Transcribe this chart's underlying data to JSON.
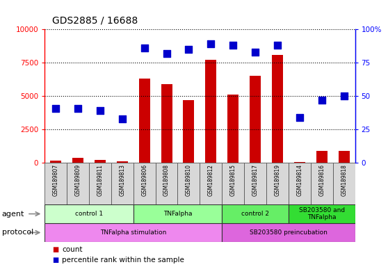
{
  "title": "GDS2885 / 16688",
  "samples": [
    "GSM189807",
    "GSM189809",
    "GSM189811",
    "GSM189813",
    "GSM189806",
    "GSM189808",
    "GSM189810",
    "GSM189812",
    "GSM189815",
    "GSM189817",
    "GSM189819",
    "GSM189814",
    "GSM189816",
    "GSM189818"
  ],
  "count_values": [
    150,
    400,
    200,
    100,
    6300,
    5900,
    4700,
    7700,
    5100,
    6500,
    8100,
    50,
    900,
    900
  ],
  "percentile_values": [
    41,
    41,
    39,
    33,
    86,
    82,
    85,
    89,
    88,
    83,
    88,
    34,
    47,
    50
  ],
  "ylim_left": [
    0,
    10000
  ],
  "ylim_right": [
    0,
    100
  ],
  "yticks_left": [
    0,
    2500,
    5000,
    7500,
    10000
  ],
  "ytick_labels_left": [
    "0",
    "2500",
    "5000",
    "7500",
    "10000"
  ],
  "yticks_right": [
    0,
    25,
    50,
    75,
    100
  ],
  "ytick_labels_right": [
    "0",
    "25",
    "50",
    "75",
    "100%"
  ],
  "bar_color": "#CC0000",
  "dot_color": "#0000CC",
  "agent_groups": [
    {
      "label": "control 1",
      "start": 0,
      "end": 4,
      "color": "#CCFFCC"
    },
    {
      "label": "TNFalpha",
      "start": 4,
      "end": 8,
      "color": "#99FF99"
    },
    {
      "label": "control 2",
      "start": 8,
      "end": 11,
      "color": "#66EE66"
    },
    {
      "label": "SB203580 and\nTNFalpha",
      "start": 11,
      "end": 14,
      "color": "#33DD33"
    }
  ],
  "protocol_groups": [
    {
      "label": "TNFalpha stimulation",
      "start": 0,
      "end": 8,
      "color": "#EE88EE"
    },
    {
      "label": "SB203580 preincubation",
      "start": 8,
      "end": 14,
      "color": "#DD66DD"
    }
  ],
  "bar_width": 0.5,
  "dot_size": 50,
  "agent_row_label": "agent",
  "protocol_row_label": "protocol",
  "legend_count_label": "count",
  "legend_pct_label": "percentile rank within the sample",
  "bg_color": "#FFFFFF",
  "sample_cell_color": "#D8D8D8",
  "grid_linestyle": "dotted",
  "grid_color": "#000000",
  "right_axis_percent_suffix": "%"
}
